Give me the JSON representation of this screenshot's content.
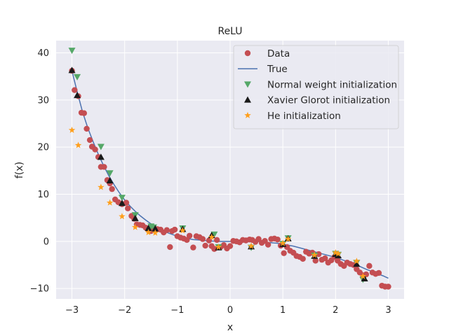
{
  "chart_data": {
    "type": "scatter",
    "title": "ReLU",
    "xlabel": "x",
    "ylabel": "f(x)",
    "xlim": [
      -3.3,
      3.3
    ],
    "ylim": [
      -12.2,
      42.6
    ],
    "xticks": [
      -3,
      -2,
      -1,
      0,
      1,
      2,
      3
    ],
    "xtick_labels": [
      "−3",
      "−2",
      "−1",
      "0",
      "1",
      "2",
      "3"
    ],
    "yticks": [
      -10,
      0,
      10,
      20,
      30,
      40
    ],
    "ytick_labels": [
      "−10",
      "0",
      "10",
      "20",
      "30",
      "40"
    ],
    "grid": true,
    "legend_position": "top-right",
    "background": "#eaeaf2",
    "true_curve": {
      "name": "True",
      "color": "#4c72b0",
      "x": [
        -3.0,
        -2.9,
        -2.8,
        -2.7,
        -2.6,
        -2.5,
        -2.4,
        -2.3,
        -2.2,
        -2.1,
        -2.0,
        -1.9,
        -1.8,
        -1.7,
        -1.6,
        -1.5,
        -1.4,
        -1.3,
        -1.2,
        -1.1,
        -1.0,
        -0.9,
        -0.8,
        -0.7,
        -0.6,
        -0.5,
        -0.4,
        -0.3,
        -0.2,
        -0.1,
        0.0,
        0.1,
        0.2,
        0.3,
        0.4,
        0.5,
        0.6,
        0.7,
        0.8,
        0.9,
        1.0,
        1.1,
        1.2,
        1.3,
        1.4,
        1.5,
        1.6,
        1.7,
        1.8,
        1.9,
        2.0,
        2.1,
        2.2,
        2.3,
        2.4,
        2.5,
        2.6,
        2.7,
        2.8,
        2.9,
        3.0
      ],
      "y": [
        36.2,
        31.7,
        27.5,
        24.1,
        21.2,
        18.5,
        16.1,
        13.9,
        12.0,
        10.3,
        8.8,
        7.5,
        6.4,
        5.4,
        4.5,
        3.7,
        3.0,
        2.4,
        1.9,
        1.5,
        1.1,
        0.8,
        0.6,
        0.4,
        0.3,
        0.2,
        0.1,
        0.05,
        0.0,
        0.0,
        0.0,
        0.0,
        0.0,
        0.0,
        0.0,
        0.0,
        -0.1,
        -0.2,
        -0.3,
        -0.4,
        -0.6,
        -0.8,
        -1.0,
        -1.3,
        -1.6,
        -1.9,
        -2.2,
        -2.5,
        -2.8,
        -3.1,
        -3.4,
        -3.8,
        -4.2,
        -4.6,
        -5.0,
        -5.5,
        -6.0,
        -6.4,
        -6.9,
        -7.3,
        -7.8
      ]
    },
    "series": [
      {
        "name": "Data",
        "marker": "circle",
        "color": "#c44e52",
        "x": [
          -3.0,
          -2.95,
          -2.88,
          -2.82,
          -2.77,
          -2.72,
          -2.66,
          -2.62,
          -2.56,
          -2.5,
          -2.45,
          -2.39,
          -2.33,
          -2.28,
          -2.24,
          -2.18,
          -2.12,
          -2.05,
          -1.97,
          -1.94,
          -1.87,
          -1.82,
          -1.77,
          -1.71,
          -1.66,
          -1.6,
          -1.55,
          -1.5,
          -1.44,
          -1.38,
          -1.32,
          -1.26,
          -1.2,
          -1.14,
          -1.1,
          -1.05,
          -1.0,
          -0.94,
          -0.88,
          -0.82,
          -0.77,
          -0.7,
          -0.64,
          -0.58,
          -0.52,
          -0.47,
          -0.4,
          -0.35,
          -0.3,
          -0.25,
          -0.18,
          -0.12,
          -0.06,
          0.0,
          0.06,
          0.12,
          0.18,
          0.24,
          0.3,
          0.37,
          0.42,
          0.48,
          0.54,
          0.6,
          0.66,
          0.72,
          0.78,
          0.84,
          0.9,
          0.96,
          1.02,
          1.08,
          1.14,
          1.2,
          1.26,
          1.32,
          1.38,
          1.44,
          1.5,
          1.56,
          1.62,
          1.68,
          1.74,
          1.8,
          1.86,
          1.92,
          1.98,
          2.04,
          2.1,
          2.16,
          2.22,
          2.28,
          2.34,
          2.4,
          2.46,
          2.52,
          2.58,
          2.64,
          2.7,
          2.76,
          2.82,
          2.88,
          2.94,
          3.0
        ],
        "y": [
          36.2,
          32.1,
          30.8,
          27.3,
          27.2,
          23.9,
          21.5,
          20.1,
          19.5,
          17.9,
          15.8,
          15.8,
          13.0,
          12.3,
          11.1,
          8.9,
          8.3,
          7.9,
          8.2,
          7.0,
          5.4,
          4.8,
          3.6,
          3.5,
          3.4,
          2.9,
          2.5,
          2.2,
          2.6,
          2.6,
          2.5,
          1.9,
          2.4,
          -1.2,
          2.2,
          2.5,
          1.1,
          0.8,
          0.6,
          0.3,
          1.2,
          -1.3,
          1.1,
          0.9,
          0.5,
          -0.9,
          0.2,
          -1.0,
          -1.6,
          0.3,
          -1.2,
          -0.8,
          -1.5,
          -1.0,
          0.1,
          0.0,
          -0.2,
          0.3,
          0.2,
          0.4,
          0.3,
          -0.1,
          0.5,
          -0.3,
          0.1,
          -0.7,
          0.5,
          0.6,
          0.4,
          -0.9,
          -2.5,
          -1.2,
          -2.0,
          -2.4,
          -3.1,
          -3.3,
          -3.7,
          -2.2,
          -2.6,
          -2.4,
          -4.1,
          -2.7,
          -3.9,
          -3.6,
          -4.5,
          -4.0,
          -3.3,
          -4.1,
          -4.8,
          -5.2,
          -4.5,
          -4.8,
          -5.0,
          -5.9,
          -6.6,
          -7.2,
          -7.0,
          -5.2,
          -6.6,
          -6.9,
          -6.7,
          -9.4,
          -9.6,
          -9.6
        ]
      },
      {
        "name": "Normal weight initialization",
        "marker": "triangle-down",
        "color": "#55a868",
        "x": [
          -3.0,
          -2.9,
          -2.45,
          -2.28,
          -2.05,
          -1.8,
          -1.5,
          -1.45,
          -0.9,
          -0.3,
          -0.22,
          0.4,
          1.0,
          1.1,
          1.6,
          2.0,
          2.05,
          2.4,
          2.52
        ],
        "y": [
          40.5,
          34.9,
          20.1,
          14.5,
          9.3,
          5.6,
          3.2,
          3.0,
          2.8,
          1.5,
          -1.2,
          -1.3,
          -0.5,
          0.7,
          -3.0,
          -2.6,
          -2.8,
          -4.5,
          -8.1
        ]
      },
      {
        "name": "Xavier Glorot initialization",
        "marker": "triangle-up",
        "color": "#1a1a1a",
        "x": [
          -3.0,
          -2.9,
          -2.45,
          -2.28,
          -2.05,
          -1.8,
          -1.55,
          -1.42,
          -0.9,
          -0.35,
          -0.22,
          0.4,
          1.0,
          1.1,
          1.6,
          2.0,
          2.05,
          2.4,
          2.55
        ],
        "y": [
          36.3,
          31.0,
          17.9,
          12.9,
          8.1,
          4.9,
          2.8,
          2.7,
          2.6,
          1.3,
          -1.3,
          -1.1,
          -0.6,
          0.6,
          -3.1,
          -2.7,
          -3.0,
          -4.8,
          -7.9
        ]
      },
      {
        "name": "He initialization",
        "marker": "star",
        "color": "#ff9f1c",
        "x": [
          -3.0,
          -2.88,
          -2.45,
          -2.28,
          -2.05,
          -1.8,
          -1.55,
          -1.42,
          -0.9,
          -0.35,
          -0.22,
          0.4,
          1.0,
          1.1,
          1.6,
          2.0,
          2.05,
          2.4,
          2.52
        ],
        "y": [
          23.6,
          20.4,
          11.5,
          8.2,
          5.3,
          3.0,
          1.9,
          1.8,
          2.3,
          0.9,
          -1.2,
          -1.0,
          -0.4,
          0.5,
          -2.9,
          -2.4,
          -2.6,
          -4.2,
          -7.4
        ]
      }
    ]
  }
}
